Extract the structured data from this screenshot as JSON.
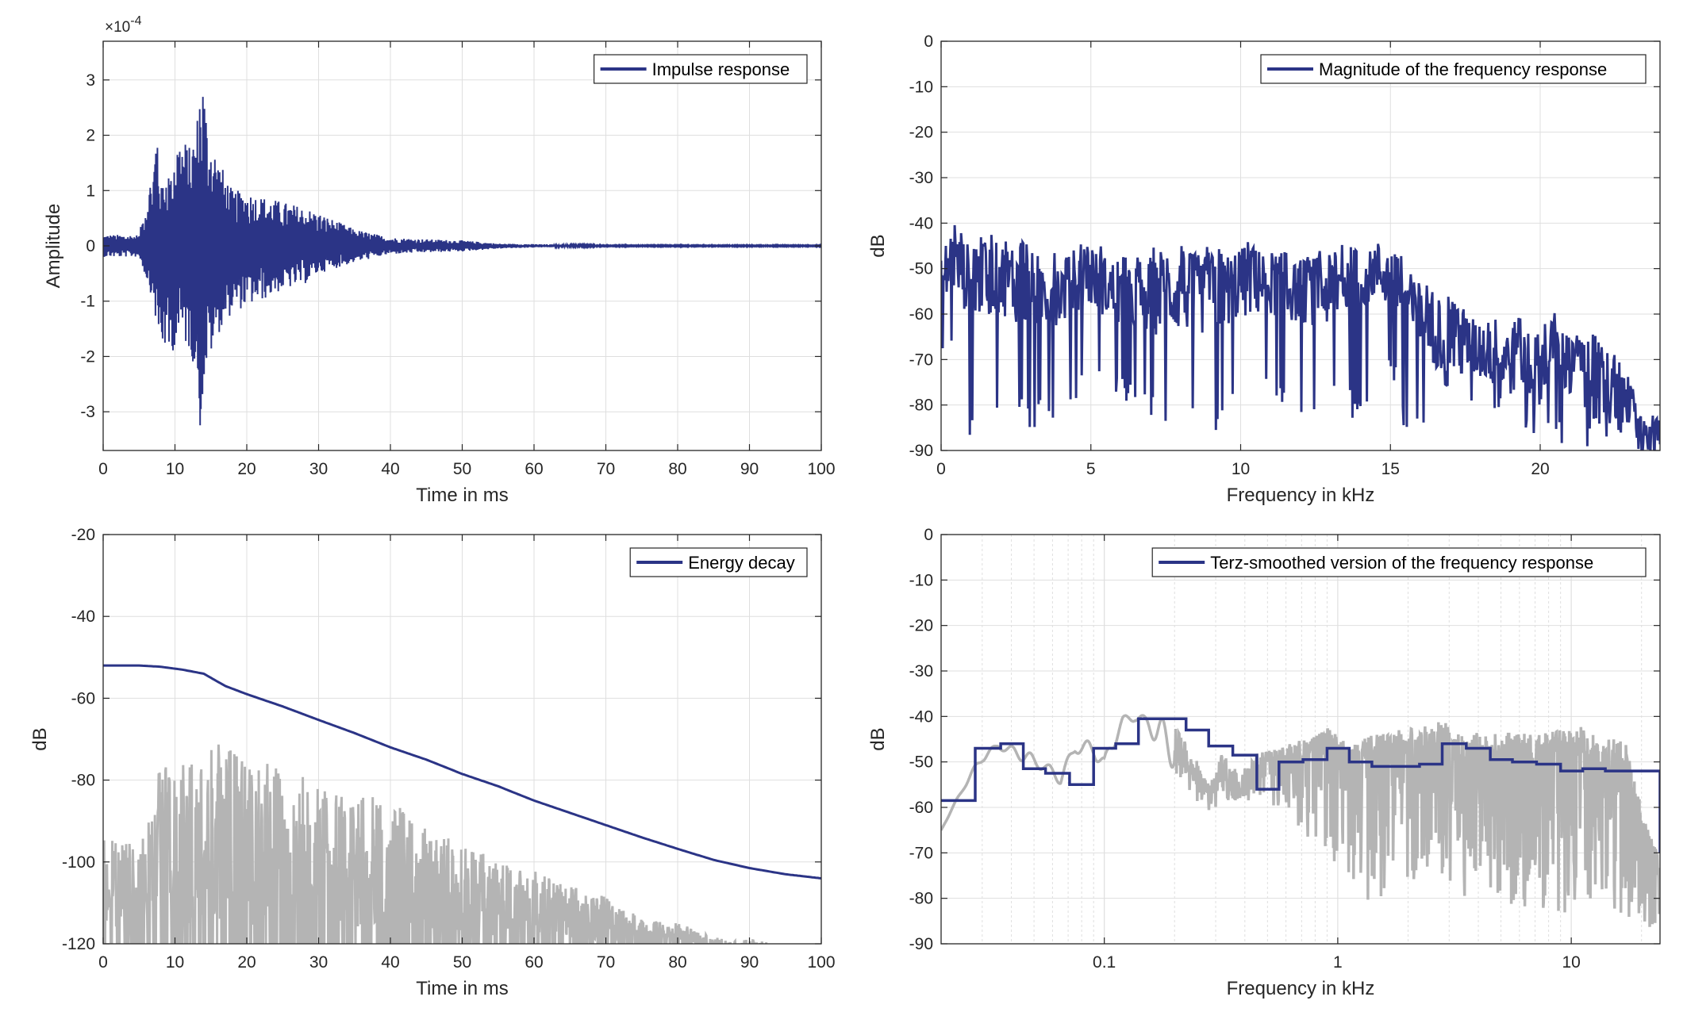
{
  "colors": {
    "series": "#2b3486",
    "gray": "#b4b4b4",
    "grid": "#dfdfdf",
    "axis": "#262626"
  },
  "chart_data": [
    {
      "type": "line",
      "id": "impulse",
      "xlabel": "Time in ms",
      "ylabel": "Amplitude",
      "exponent_label": "×10",
      "exponent_power": "-4",
      "xlim": [
        0,
        100
      ],
      "ylim": [
        -3.7,
        3.7
      ],
      "xticks": [
        0,
        10,
        20,
        30,
        40,
        50,
        60,
        70,
        80,
        90,
        100
      ],
      "yticks": [
        -3,
        -2,
        -1,
        0,
        1,
        2,
        3
      ],
      "xtick_labels": [
        "0",
        "10",
        "20",
        "30",
        "40",
        "50",
        "60",
        "70",
        "80",
        "90",
        "100"
      ],
      "ytick_labels": [
        "-3",
        "-2",
        "-1",
        "0",
        "1",
        "2",
        "3"
      ],
      "grid": true,
      "legend": {
        "position": "top-right",
        "entries": [
          "Impulse response"
        ]
      },
      "series": [
        {
          "name": "Impulse response",
          "x": [
            0,
            5,
            7,
            7.5,
            8,
            8.5,
            9,
            9.5,
            10,
            11,
            12,
            13,
            13.5,
            14,
            14.5,
            15,
            16,
            17,
            18,
            20,
            22,
            25,
            28,
            30,
            35,
            40,
            45,
            50,
            55,
            60,
            65,
            70,
            80,
            90,
            100
          ],
          "y_upper": [
            0.2,
            0.2,
            1.5,
            2.4,
            1.0,
            1.3,
            1.5,
            1.2,
            2.0,
            2.0,
            1.8,
            2.2,
            3.1,
            3.1,
            2.2,
            2.0,
            1.6,
            1.3,
            1.0,
            1.0,
            0.9,
            0.8,
            0.7,
            0.6,
            0.3,
            0.15,
            0.12,
            0.1,
            0.04,
            0.03,
            0.02,
            0.01,
            0.01,
            0.01,
            0.01
          ],
          "y_lower": [
            -0.2,
            -0.2,
            -1.0,
            -1.6,
            -2.0,
            -1.8,
            -2.2,
            -2.0,
            -1.8,
            -1.7,
            -1.9,
            -2.3,
            -3.35,
            -2.6,
            -2.2,
            -2.0,
            -1.6,
            -1.4,
            -1.2,
            -1.1,
            -1.0,
            -0.8,
            -0.7,
            -0.5,
            -0.3,
            -0.15,
            -0.12,
            -0.1,
            -0.05,
            -0.03,
            -0.02,
            -0.01,
            -0.01,
            -0.01,
            -0.01
          ]
        }
      ]
    },
    {
      "type": "line",
      "id": "magnitude",
      "xlabel": "Frequency in kHz",
      "ylabel": "dB",
      "xlim": [
        0,
        24
      ],
      "ylim": [
        -90,
        0
      ],
      "xticks": [
        0,
        5,
        10,
        15,
        20
      ],
      "yticks": [
        0,
        -10,
        -20,
        -30,
        -40,
        -50,
        -60,
        -70,
        -80,
        -90
      ],
      "xtick_labels": [
        "0",
        "5",
        "10",
        "15",
        "20"
      ],
      "ytick_labels": [
        "0",
        "-10",
        "-20",
        "-30",
        "-40",
        "-50",
        "-60",
        "-70",
        "-80",
        "-90"
      ],
      "grid": true,
      "legend": {
        "position": "top-right",
        "entries": [
          "Magnitude of the frequency response"
        ]
      },
      "series": [
        {
          "name": "Magnitude of the frequency response",
          "x": [
            0,
            0.3,
            1,
            2,
            3,
            4,
            5,
            6,
            7,
            8,
            9,
            10,
            11,
            12,
            13,
            14,
            14.5,
            15,
            15.5,
            16,
            17,
            18,
            19,
            20,
            20.5,
            21,
            22,
            23,
            23.5
          ],
          "y_upper": [
            -45,
            -39,
            -43,
            -42,
            -44,
            -46,
            -44,
            -47,
            -45,
            -44,
            -45,
            -43,
            -44,
            -46,
            -45,
            -43,
            -42,
            -43,
            -47,
            -53,
            -56,
            -60,
            -60,
            -62,
            -59,
            -64,
            -64,
            -74,
            -82
          ],
          "y_lower": [
            -72,
            -65,
            -88,
            -80,
            -86,
            -82,
            -76,
            -80,
            -84,
            -84,
            -89,
            -80,
            -80,
            -83,
            -80,
            -84,
            -80,
            -72,
            -88,
            -85,
            -80,
            -80,
            -84,
            -90,
            -88,
            -90,
            -90,
            -90,
            -90
          ],
          "y_mid": [
            -55,
            -48,
            -53,
            -52,
            -55,
            -55,
            -52,
            -56,
            -56,
            -55,
            -56,
            -53,
            -53,
            -55,
            -55,
            -52,
            -50,
            -52,
            -56,
            -62,
            -66,
            -68,
            -70,
            -72,
            -66,
            -73,
            -75,
            -82,
            -88
          ]
        }
      ]
    },
    {
      "type": "line",
      "id": "energy",
      "xlabel": "Time in ms",
      "ylabel": "dB",
      "xlim": [
        0,
        100
      ],
      "ylim": [
        -120,
        -20
      ],
      "xticks": [
        0,
        10,
        20,
        30,
        40,
        50,
        60,
        70,
        80,
        90,
        100
      ],
      "yticks": [
        -20,
        -40,
        -60,
        -80,
        -100,
        -120
      ],
      "xtick_labels": [
        "0",
        "10",
        "20",
        "30",
        "40",
        "50",
        "60",
        "70",
        "80",
        "90",
        "100"
      ],
      "ytick_labels": [
        "-20",
        "-40",
        "-60",
        "-80",
        "-100",
        "-120"
      ],
      "grid": true,
      "legend": {
        "position": "top-right",
        "entries": [
          "Energy decay"
        ]
      },
      "series": [
        {
          "name": "Energy decay",
          "x": [
            0,
            5,
            8,
            11,
            14,
            17,
            20,
            25,
            30,
            35,
            40,
            45,
            50,
            55,
            60,
            65,
            70,
            75,
            80,
            85,
            90,
            95,
            100
          ],
          "y": [
            -52,
            -52,
            -52.3,
            -53,
            -54,
            -57,
            -59,
            -62,
            -65.3,
            -68.5,
            -72,
            -75,
            -78.5,
            -81.5,
            -85,
            -88,
            -91,
            -94,
            -96.8,
            -99.5,
            -101.5,
            -103,
            -104
          ]
        },
        {
          "name": "",
          "x": [
            0,
            5,
            7,
            8,
            10,
            12,
            14,
            15,
            20,
            25,
            30,
            35,
            40,
            45,
            50,
            55,
            60,
            65,
            70,
            75,
            80,
            85,
            90,
            95,
            100
          ],
          "y_upper": [
            -94,
            -95,
            -88,
            -74,
            -76,
            -76,
            -71,
            -70,
            -74,
            -77,
            -81,
            -84,
            -84,
            -92,
            -95,
            -100,
            -102,
            -106,
            -108,
            -114,
            -115,
            -118,
            -119,
            -120,
            -120
          ],
          "y_lower": [
            -120,
            -120,
            -120,
            -120,
            -120,
            -120,
            -120,
            -120,
            -120,
            -120,
            -120,
            -120,
            -120,
            -120,
            -120,
            -120,
            -120,
            -120,
            -120,
            -120,
            -120,
            -120,
            -120,
            -120,
            -120
          ]
        }
      ]
    },
    {
      "type": "line",
      "id": "terz",
      "xlabel": "Frequency in kHz",
      "ylabel": "dB",
      "xscale": "log",
      "xlim": [
        0.02,
        24
      ],
      "ylim": [
        -90,
        0
      ],
      "xticks": [
        0.1,
        1,
        10
      ],
      "yticks": [
        0,
        -10,
        -20,
        -30,
        -40,
        -50,
        -60,
        -70,
        -80,
        -90
      ],
      "xtick_labels": [
        "0.1",
        "1",
        "10"
      ],
      "ytick_labels": [
        "0",
        "-10",
        "-20",
        "-30",
        "-40",
        "-50",
        "-60",
        "-70",
        "-80",
        "-90"
      ],
      "grid": true,
      "legend": {
        "position": "top-right",
        "entries": [
          "Terz-smoothed version of the frequency response"
        ]
      },
      "series": [
        {
          "name": "Terz-smoothed version of the frequency response",
          "step_edges": [
            0.02,
            0.028,
            0.036,
            0.045,
            0.056,
            0.071,
            0.09,
            0.112,
            0.14,
            0.18,
            0.224,
            0.28,
            0.355,
            0.45,
            0.56,
            0.71,
            0.9,
            1.12,
            1.4,
            1.8,
            2.24,
            2.8,
            3.55,
            4.5,
            5.6,
            7.1,
            9,
            11.2,
            14,
            18,
            24
          ],
          "step_values": [
            -58.5,
            -47,
            -46,
            -51.5,
            -52.5,
            -55,
            -47,
            -46,
            -40.5,
            -40.5,
            -43,
            -46.5,
            -48.5,
            -56,
            -50,
            -49.5,
            -47,
            -50,
            -51,
            -51,
            -50.5,
            -46,
            -47,
            -49.5,
            -50,
            -50.5,
            -52,
            -51.5,
            -52,
            -52,
            -70
          ]
        },
        {
          "name": "",
          "x": [
            0.02,
            0.025,
            0.03,
            0.035,
            0.045,
            0.055,
            0.065,
            0.075,
            0.09,
            0.1,
            0.11,
            0.12,
            0.135,
            0.15,
            0.17,
            0.2,
            0.24,
            0.28,
            0.32,
            0.38,
            0.45,
            0.55,
            0.7,
            0.9,
            1.1,
            1.4,
            1.8,
            2.2,
            2.8,
            3.5,
            4.5,
            5.6,
            7,
            9,
            11,
            14,
            17,
            20,
            24
          ],
          "y_upper": [
            -65,
            -55,
            -48,
            -46,
            -47,
            -50,
            -52,
            -46,
            -45,
            -49,
            -43,
            -40,
            -39,
            -40,
            -40,
            -42,
            -48,
            -55,
            -48,
            -52,
            -48,
            -47,
            -45,
            -42,
            -46,
            -44,
            -43,
            -42,
            -41,
            -43,
            -44,
            -43,
            -44,
            -43,
            -42,
            -45,
            -45,
            -60,
            -72
          ],
          "y_lower": [
            -65,
            -56,
            -50,
            -47,
            -50,
            -52,
            -55,
            -48,
            -49,
            -52,
            -47,
            -42,
            -41,
            -42,
            -47,
            -52,
            -58,
            -62,
            -58,
            -60,
            -60,
            -62,
            -65,
            -72,
            -75,
            -82,
            -76,
            -78,
            -80,
            -80,
            -78,
            -82,
            -82,
            -85,
            -82,
            -80,
            -85,
            -85,
            -88
          ]
        }
      ]
    }
  ]
}
